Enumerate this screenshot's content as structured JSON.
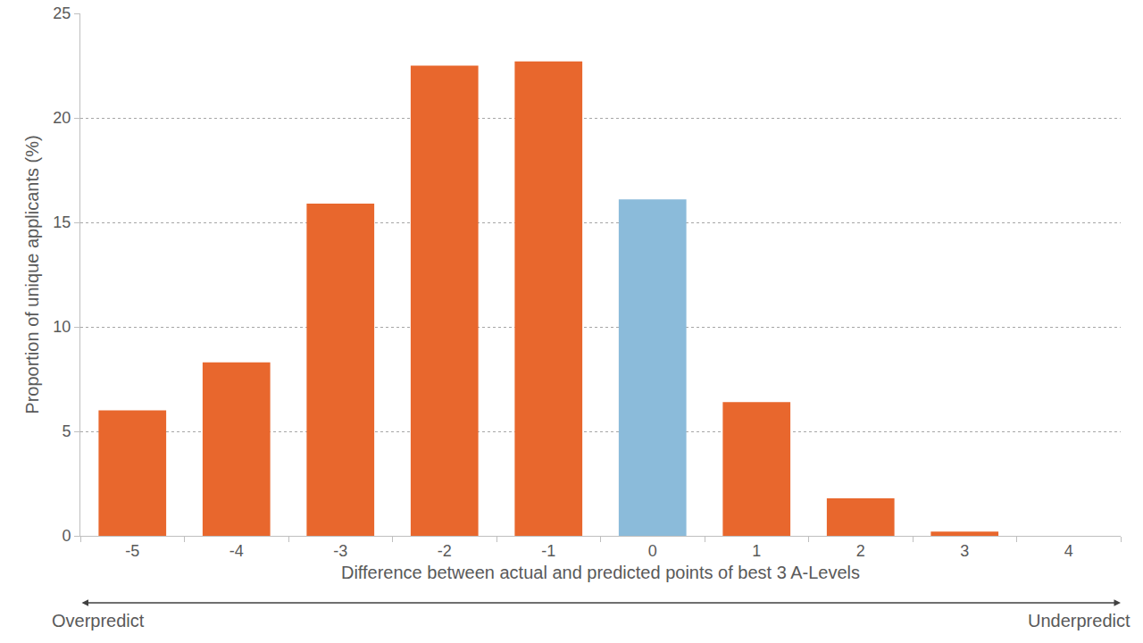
{
  "chart_data": {
    "type": "bar",
    "categories": [
      "-5",
      "-4",
      "-3",
      "-2",
      "-1",
      "0",
      "1",
      "2",
      "3",
      "4"
    ],
    "values": [
      6.0,
      8.3,
      15.9,
      22.5,
      22.7,
      16.1,
      6.4,
      1.8,
      0.2,
      0
    ],
    "colors": [
      "#e8672d",
      "#e8672d",
      "#e8672d",
      "#e8672d",
      "#e8672d",
      "#8bbbda",
      "#e8672d",
      "#e8672d",
      "#e8672d",
      "#e8672d"
    ],
    "xlabel": "Difference between actual and predicted points of best 3 A-Levels",
    "ylabel": "Proportion of unique applicants (%)",
    "ylim": [
      0,
      25
    ],
    "yticks": [
      0,
      5,
      10,
      15,
      20,
      25
    ],
    "grid": true,
    "annotations": [
      "Overpredict",
      "Underpredict"
    ]
  }
}
